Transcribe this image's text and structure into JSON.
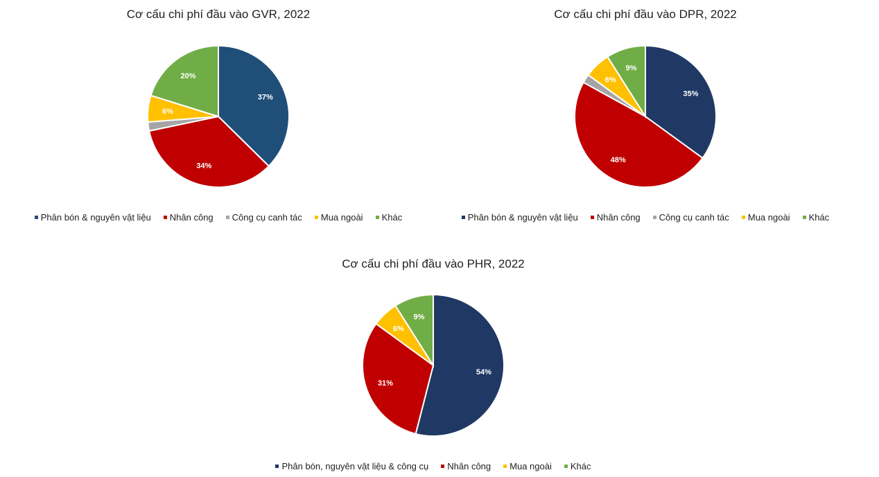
{
  "chart_data": [
    {
      "type": "pie",
      "title": "Cơ cấu chi phí đầu vào GVR, 2022",
      "start_angle_deg": 0,
      "slices": [
        {
          "name": "Phân bón & nguyên vật liệu",
          "value": 37,
          "label": "37%",
          "color": "#1f4e79"
        },
        {
          "name": "Nhân công",
          "value": 34,
          "label": "34%",
          "color": "#c00000"
        },
        {
          "name": "Công cụ canh tác",
          "value": 2,
          "label": "",
          "color": "#a5a5a5"
        },
        {
          "name": "Mua ngoài",
          "value": 6,
          "label": "6%",
          "color": "#ffc000"
        },
        {
          "name": "Khác",
          "value": 20,
          "label": "20%",
          "color": "#70ad47"
        }
      ]
    },
    {
      "type": "pie",
      "title": "Cơ cấu chi phí đầu vào DPR, 2022",
      "start_angle_deg": 0,
      "slices": [
        {
          "name": "Phân bón & nguyên vật liệu",
          "value": 35,
          "label": "35%",
          "color": "#203864"
        },
        {
          "name": "Nhân công",
          "value": 48,
          "label": "48%",
          "color": "#c00000"
        },
        {
          "name": "Công cụ canh tác",
          "value": 2,
          "label": "",
          "color": "#a5a5a5"
        },
        {
          "name": "Mua ngoài",
          "value": 6,
          "label": "6%",
          "color": "#ffc000"
        },
        {
          "name": "Khác",
          "value": 9,
          "label": "9%",
          "color": "#70ad47"
        }
      ]
    },
    {
      "type": "pie",
      "title": "Cơ cấu chi phí đầu vào PHR, 2022",
      "start_angle_deg": 0,
      "slices": [
        {
          "name": "Phân bón, nguyên vật liệu & công cụ",
          "value": 54,
          "label": "54%",
          "color": "#203864"
        },
        {
          "name": "Nhân công",
          "value": 31,
          "label": "31%",
          "color": "#c00000"
        },
        {
          "name": "Mua ngoài",
          "value": 6,
          "label": "6%",
          "color": "#ffc000"
        },
        {
          "name": "Khác",
          "value": 9,
          "label": "9%",
          "color": "#70ad47"
        }
      ]
    }
  ]
}
